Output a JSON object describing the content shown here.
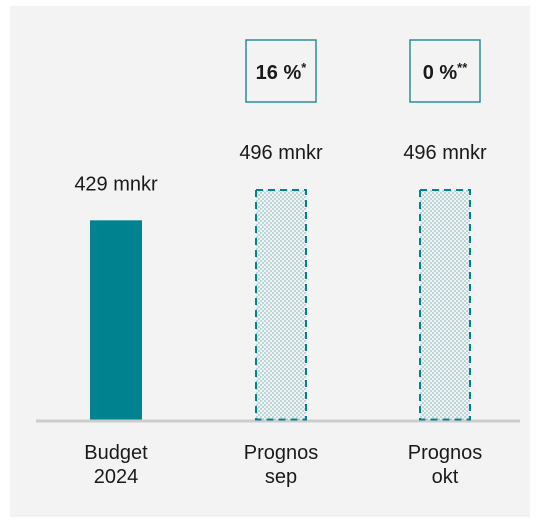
{
  "chart_data": {
    "type": "bar",
    "categories": [
      [
        "Budget",
        "2024"
      ],
      [
        "Prognos",
        "sep"
      ],
      [
        "Prognos",
        "okt"
      ]
    ],
    "values": [
      429,
      496,
      496
    ],
    "unit": "mnkr",
    "value_labels": [
      "429 mnkr",
      "496 mnkr",
      "496 mnkr"
    ],
    "bar_styles": [
      "solid",
      "dotted-dashed",
      "dotted-dashed"
    ],
    "change_badges": [
      null,
      {
        "text": "16 %",
        "marker": "*"
      },
      {
        "text": "0 %",
        "marker": "**"
      }
    ],
    "ylim": [
      0,
      900
    ],
    "grid": false,
    "colors": {
      "bar": "#00838f",
      "badge_border": "#2a8f96",
      "baseline": "#cccccc",
      "background": "#f3f3f3"
    }
  }
}
